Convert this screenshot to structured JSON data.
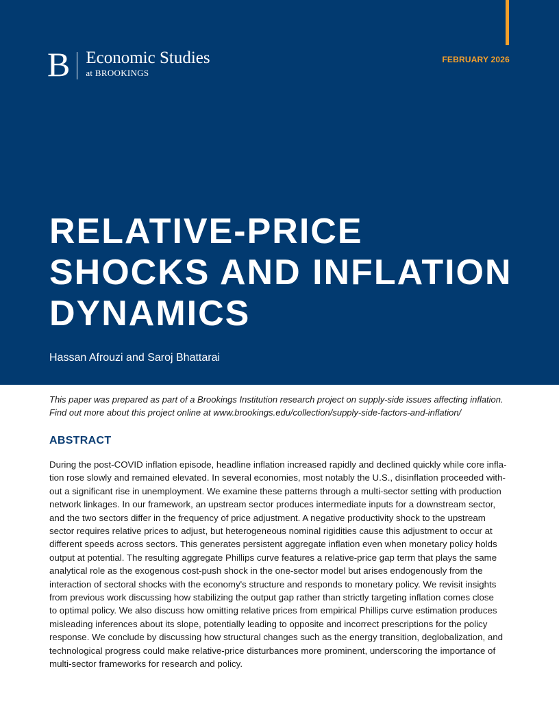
{
  "header": {
    "logo_letter": "B",
    "logo_name": "Economic Studies",
    "logo_sub": "at BROOKINGS",
    "date": "FEBRUARY 2026",
    "colors": {
      "band": "#023a70",
      "accent": "#f5a02a"
    }
  },
  "title_lines": [
    "RELATIVE-PRICE",
    "SHOCKS AND INFLATION",
    "DYNAMICS"
  ],
  "authors": "Hassan Afrouzi and Saroj Bhattarai",
  "note_lines": [
    "This paper was prepared as part of a Brookings Institution research project on supply-side issues affecting inflation.",
    "Find out more about this project online at www.brookings.edu/collection/supply-side-factors-and-inflation/"
  ],
  "abstract": {
    "heading": "ABSTRACT",
    "lines": [
      "During the post-COVID inflation episode, headline inflation increased rapidly and declined quickly while core infla-",
      "tion rose slowly and remained elevated. In several economies, most notably the U.S., disinflation proceeded with-",
      "out a significant rise in unemployment. We examine these patterns through a multi-sector setting with production",
      "network linkages. In our framework, an upstream sector produces intermediate inputs for a downstream sector,",
      "and the two sectors differ in the frequency of price adjustment. A negative productivity shock to the upstream",
      "sector requires relative prices to adjust, but heterogeneous nominal rigidities cause this adjustment to occur at",
      "different speeds across sectors. This generates persistent aggregate inflation even when monetary policy holds",
      "output at potential. The resulting aggregate Phillips curve features a relative-price gap term that plays the same",
      "analytical role as the exogenous cost-push shock in the one-sector model but arises endogenously from the",
      "interaction of sectoral shocks with the economy's structure and responds to monetary policy. We revisit insights",
      "from previous work discussing how stabilizing the output gap rather than strictly targeting inflation comes close",
      "to optimal policy. We also discuss how omitting relative prices from empirical Phillips curve estimation produces",
      "misleading inferences about its slope, potentially leading to opposite and incorrect prescriptions for the policy",
      "response. We conclude by discussing how structural changes such as the energy transition, deglobalization, and",
      "technological progress could make relative-price disturbances more prominent, underscoring the importance of",
      "multi-sector frameworks for research and policy."
    ]
  }
}
